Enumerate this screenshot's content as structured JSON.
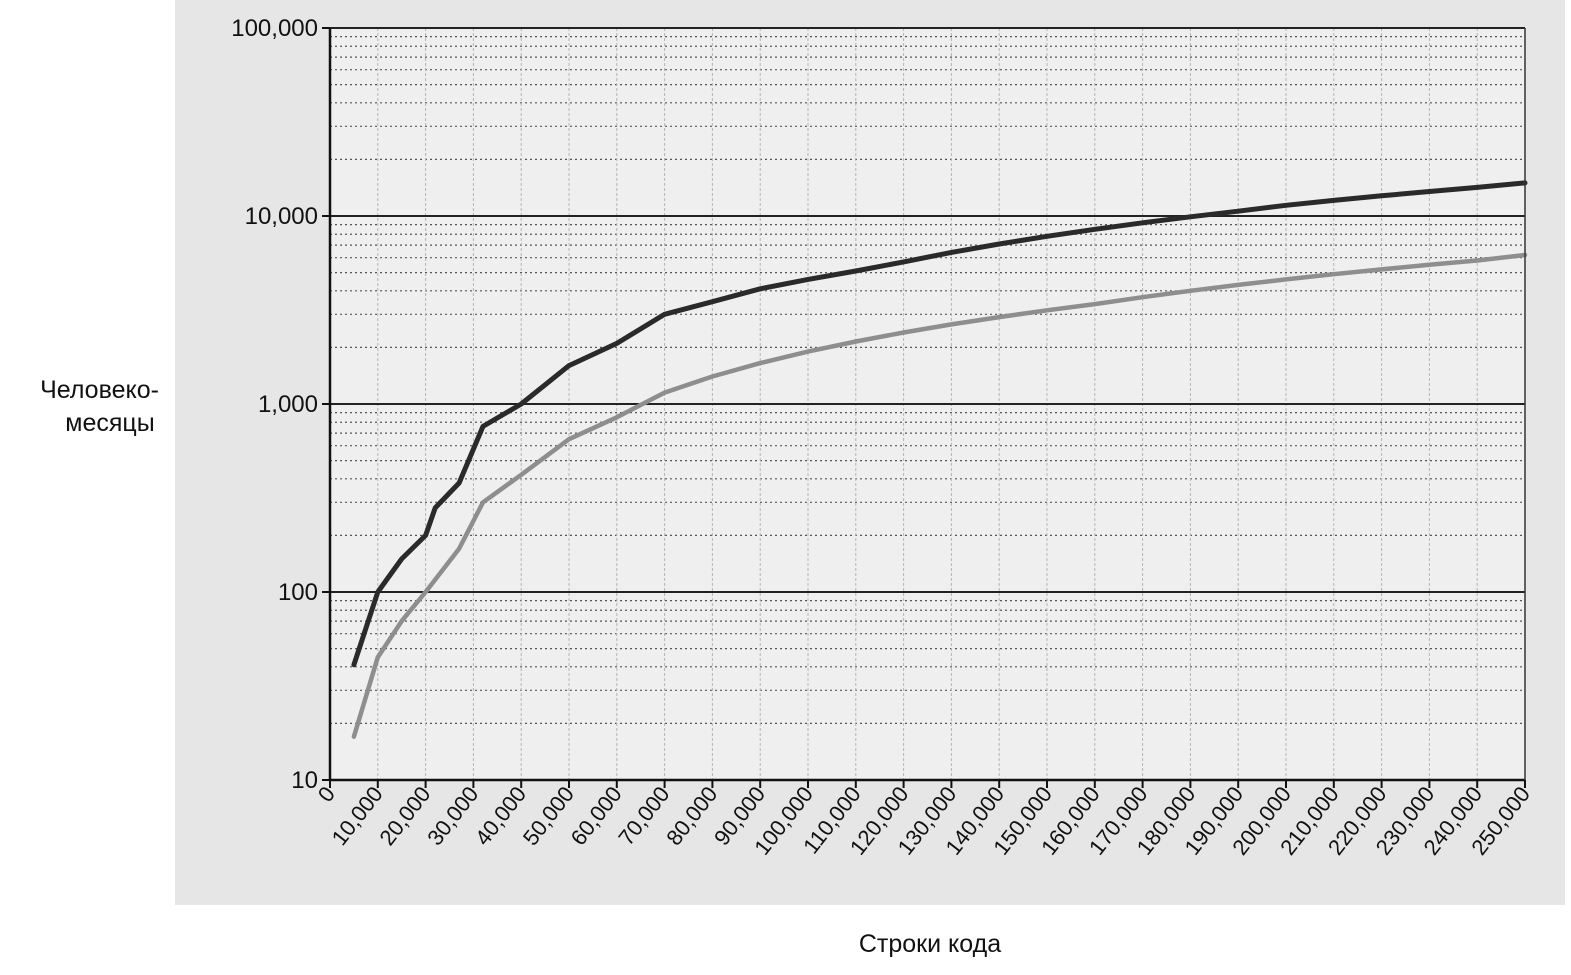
{
  "chart_data": {
    "type": "line",
    "title": "",
    "xlabel": "Строки кода",
    "ylabel": [
      "Человеко-",
      "месяцы"
    ],
    "x_scale": "linear",
    "y_scale": "log",
    "xlim": [
      0,
      250000
    ],
    "ylim": [
      10,
      100000
    ],
    "grid": true,
    "legend": "none",
    "y_ticks": [
      {
        "value": 10,
        "label": "10"
      },
      {
        "value": 100,
        "label": "100"
      },
      {
        "value": 1000,
        "label": "1,000"
      },
      {
        "value": 10000,
        "label": "10,000"
      },
      {
        "value": 100000,
        "label": "100,000"
      }
    ],
    "x_ticks": [
      {
        "value": 0,
        "label": "0"
      },
      {
        "value": 10000,
        "label": "10,000"
      },
      {
        "value": 20000,
        "label": "20,000"
      },
      {
        "value": 30000,
        "label": "30,000"
      },
      {
        "value": 40000,
        "label": "40,000"
      },
      {
        "value": 50000,
        "label": "50,000"
      },
      {
        "value": 60000,
        "label": "60,000"
      },
      {
        "value": 70000,
        "label": "70,000"
      },
      {
        "value": 80000,
        "label": "80,000"
      },
      {
        "value": 90000,
        "label": "90,000"
      },
      {
        "value": 100000,
        "label": "100,000"
      },
      {
        "value": 110000,
        "label": "110,000"
      },
      {
        "value": 120000,
        "label": "120,000"
      },
      {
        "value": 130000,
        "label": "130,000"
      },
      {
        "value": 140000,
        "label": "140,000"
      },
      {
        "value": 150000,
        "label": "150,000"
      },
      {
        "value": 160000,
        "label": "160,000"
      },
      {
        "value": 170000,
        "label": "170,000"
      },
      {
        "value": 180000,
        "label": "180,000"
      },
      {
        "value": 190000,
        "label": "190,000"
      },
      {
        "value": 200000,
        "label": "200,000"
      },
      {
        "value": 210000,
        "label": "210,000"
      },
      {
        "value": 220000,
        "label": "220,000"
      },
      {
        "value": 230000,
        "label": "230,000"
      },
      {
        "value": 240000,
        "label": "240,000"
      },
      {
        "value": 250000,
        "label": "250,000"
      }
    ],
    "series": [
      {
        "color": "#2a2a2a",
        "points": [
          [
            5000,
            41
          ],
          [
            10000,
            100
          ],
          [
            15000,
            150
          ],
          [
            20000,
            200
          ],
          [
            22000,
            280
          ],
          [
            27000,
            380
          ],
          [
            32000,
            760
          ],
          [
            40000,
            1000
          ],
          [
            50000,
            1600
          ],
          [
            60000,
            2100
          ],
          [
            70000,
            3000
          ],
          [
            80000,
            3500
          ],
          [
            90000,
            4100
          ],
          [
            100000,
            4600
          ],
          [
            110000,
            5100
          ],
          [
            120000,
            5700
          ],
          [
            130000,
            6400
          ],
          [
            140000,
            7100
          ],
          [
            150000,
            7800
          ],
          [
            160000,
            8500
          ],
          [
            170000,
            9200
          ],
          [
            180000,
            9900
          ],
          [
            190000,
            10600
          ],
          [
            200000,
            11400
          ],
          [
            210000,
            12100
          ],
          [
            220000,
            12800
          ],
          [
            230000,
            13500
          ],
          [
            240000,
            14200
          ],
          [
            250000,
            15000
          ]
        ]
      },
      {
        "color": "#8e8e8e",
        "points": [
          [
            5000,
            17
          ],
          [
            10000,
            45
          ],
          [
            15000,
            70
          ],
          [
            20000,
            100
          ],
          [
            27000,
            170
          ],
          [
            32000,
            300
          ],
          [
            40000,
            420
          ],
          [
            50000,
            650
          ],
          [
            60000,
            850
          ],
          [
            70000,
            1150
          ],
          [
            80000,
            1400
          ],
          [
            90000,
            1650
          ],
          [
            100000,
            1900
          ],
          [
            110000,
            2150
          ],
          [
            120000,
            2400
          ],
          [
            130000,
            2650
          ],
          [
            140000,
            2900
          ],
          [
            150000,
            3150
          ],
          [
            160000,
            3400
          ],
          [
            170000,
            3700
          ],
          [
            180000,
            4000
          ],
          [
            190000,
            4300
          ],
          [
            200000,
            4600
          ],
          [
            210000,
            4900
          ],
          [
            220000,
            5200
          ],
          [
            230000,
            5500
          ],
          [
            240000,
            5800
          ],
          [
            250000,
            6200
          ]
        ]
      }
    ]
  }
}
